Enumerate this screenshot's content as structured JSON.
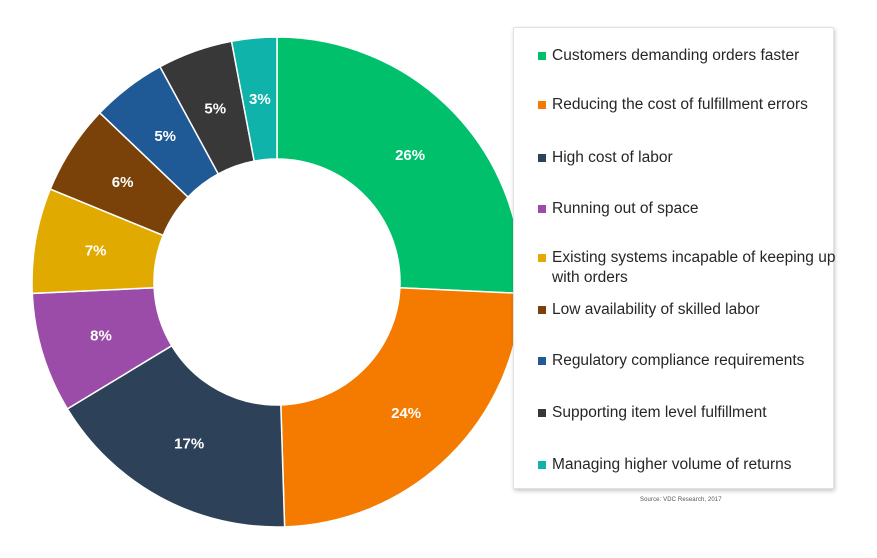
{
  "chart_data": {
    "type": "pie",
    "donut": true,
    "slices": [
      {
        "label": "Customers demanding orders faster",
        "value": 26,
        "display": "26%",
        "color": "#00c06b"
      },
      {
        "label": "Reducing the cost of fulfillment errors",
        "value": 24,
        "display": "24%",
        "color": "#f47a00"
      },
      {
        "label": "High cost of labor",
        "value": 17,
        "display": "17%",
        "color": "#2d4258"
      },
      {
        "label": "Running out of space",
        "value": 8,
        "display": "8%",
        "color": "#9b4ca8"
      },
      {
        "label": "Existing systems incapable of keeping up with orders",
        "value": 7,
        "display": "7%",
        "color": "#e0aa00"
      },
      {
        "label": "Low availability of skilled labor",
        "value": 6,
        "display": "6%",
        "color": "#7a4209"
      },
      {
        "label": "Regulatory compliance requirements",
        "value": 5,
        "display": "5%",
        "color": "#1f5a96"
      },
      {
        "label": "Supporting item level fulfillment",
        "value": 5,
        "display": "5%",
        "color": "#383838"
      },
      {
        "label": "Managing higher volume of returns",
        "value": 3,
        "display": "3%",
        "color": "#0fb3aa"
      }
    ],
    "legend_position": "right"
  },
  "source": "Source: VDC Research, 2017"
}
